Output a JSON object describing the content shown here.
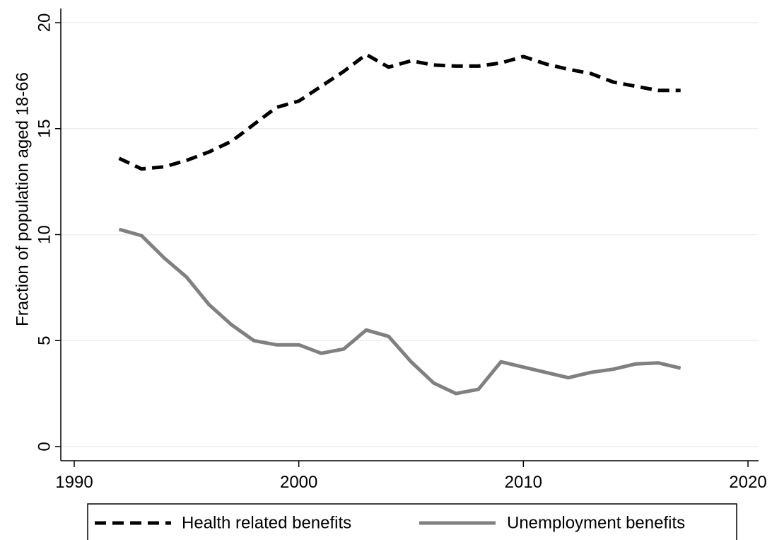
{
  "chart_data": {
    "type": "line",
    "title": "",
    "xlabel": "",
    "ylabel": "Fraction of population aged 18-66",
    "xlim": [
      1990,
      2020
    ],
    "ylim": [
      0,
      20
    ],
    "x_ticks": [
      "1990",
      "2000",
      "2010",
      "2020"
    ],
    "y_ticks": [
      "0",
      "5",
      "10",
      "15",
      "20"
    ],
    "grid": "horizontal",
    "legend_position": "bottom",
    "x": [
      1992,
      1993,
      1994,
      1995,
      1996,
      1997,
      1998,
      1999,
      2000,
      2001,
      2002,
      2003,
      2004,
      2005,
      2006,
      2007,
      2008,
      2009,
      2010,
      2011,
      2012,
      2013,
      2014,
      2015,
      2016,
      2017
    ],
    "series": [
      {
        "name": "Health related benefits",
        "color": "#000000",
        "style": "dashed",
        "values": [
          13.6,
          13.1,
          13.2,
          13.5,
          13.9,
          14.4,
          15.2,
          16.0,
          16.3,
          17.0,
          17.7,
          18.5,
          17.9,
          18.2,
          18.0,
          17.95,
          17.95,
          18.1,
          18.4,
          18.05,
          17.8,
          17.6,
          17.2,
          17.0,
          16.8,
          16.8
        ]
      },
      {
        "name": "Unemployment benefits",
        "color": "#808080",
        "style": "solid",
        "values": [
          10.25,
          9.95,
          8.9,
          8.0,
          6.7,
          5.75,
          5.0,
          4.8,
          4.8,
          4.4,
          4.6,
          5.5,
          5.2,
          4.0,
          3.0,
          2.5,
          2.7,
          4.0,
          3.75,
          3.5,
          3.25,
          3.5,
          3.65,
          3.9,
          3.95,
          3.7
        ]
      }
    ]
  }
}
